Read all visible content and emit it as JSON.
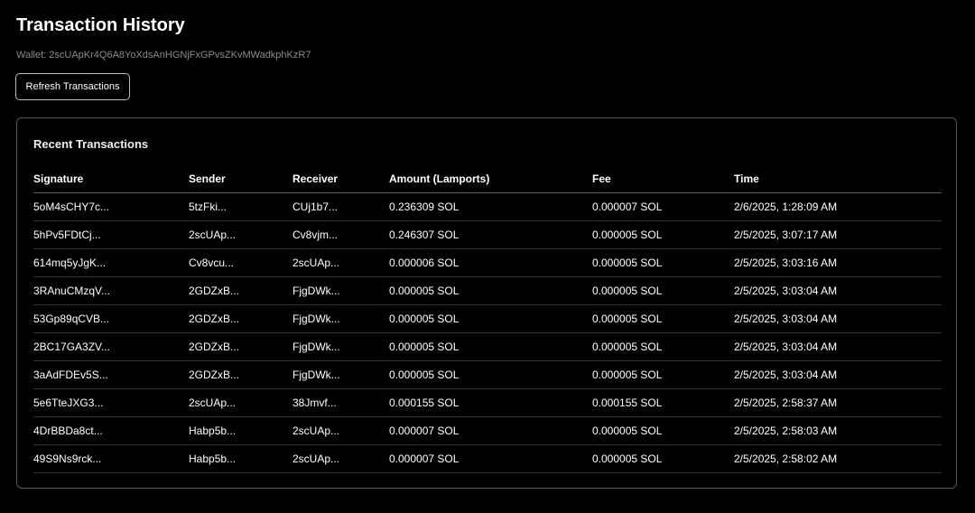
{
  "header": {
    "title": "Transaction History",
    "wallet": "Wallet: 2scUApKr4Q6A8YoXdsAnHGNjFxGPvsZKvMWadkphKzR7",
    "refresh_label": "Refresh Transactions"
  },
  "card": {
    "title": "Recent Transactions"
  },
  "table": {
    "columns": [
      "Signature",
      "Sender",
      "Receiver",
      "Amount (Lamports)",
      "Fee",
      "Time"
    ],
    "rows": [
      [
        "5oM4sCHY7c...",
        "5tzFki...",
        "CUj1b7...",
        "0.236309 SOL",
        "0.000007 SOL",
        "2/6/2025, 1:28:09 AM"
      ],
      [
        "5hPv5FDtCj...",
        "2scUAp...",
        "Cv8vjm...",
        "0.246307 SOL",
        "0.000005 SOL",
        "2/5/2025, 3:07:17 AM"
      ],
      [
        "614mq5yJgK...",
        "Cv8vcu...",
        "2scUAp...",
        "0.000006 SOL",
        "0.000005 SOL",
        "2/5/2025, 3:03:16 AM"
      ],
      [
        "3RAnuCMzqV...",
        "2GDZxB...",
        "FjgDWk...",
        "0.000005 SOL",
        "0.000005 SOL",
        "2/5/2025, 3:03:04 AM"
      ],
      [
        "53Gp89qCVB...",
        "2GDZxB...",
        "FjgDWk...",
        "0.000005 SOL",
        "0.000005 SOL",
        "2/5/2025, 3:03:04 AM"
      ],
      [
        "2BC17GA3ZV...",
        "2GDZxB...",
        "FjgDWk...",
        "0.000005 SOL",
        "0.000005 SOL",
        "2/5/2025, 3:03:04 AM"
      ],
      [
        "3aAdFDEv5S...",
        "2GDZxB...",
        "FjgDWk...",
        "0.000005 SOL",
        "0.000005 SOL",
        "2/5/2025, 3:03:04 AM"
      ],
      [
        "5e6TteJXG3...",
        "2scUAp...",
        "38Jmvf...",
        "0.000155 SOL",
        "0.000155 SOL",
        "2/5/2025, 2:58:37 AM"
      ],
      [
        "4DrBBDa8ct...",
        "Habp5b...",
        "2scUAp...",
        "0.000007 SOL",
        "0.000005 SOL",
        "2/5/2025, 2:58:03 AM"
      ],
      [
        "49S9Ns9rck...",
        "Habp5b...",
        "2scUAp...",
        "0.000007 SOL",
        "0.000005 SOL",
        "2/5/2025, 2:58:02 AM"
      ]
    ]
  }
}
